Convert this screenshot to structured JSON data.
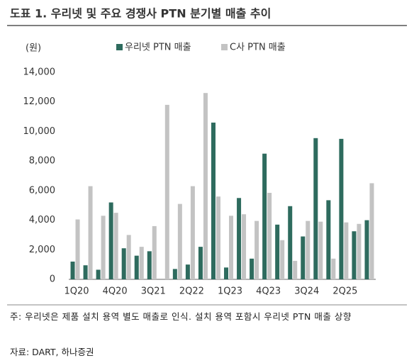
{
  "chart_data": {
    "type": "bar",
    "title": "도표 1. 우리넷 및 주요 경쟁사 PTN 분기별 매출 추이",
    "y_unit": "(원)",
    "categories": [
      "1Q20",
      null,
      null,
      "4Q20",
      null,
      null,
      "3Q21",
      null,
      null,
      "2Q22",
      null,
      null,
      "1Q23",
      null,
      null,
      "4Q23",
      null,
      null,
      "3Q24",
      null,
      null,
      "2Q25",
      null,
      null
    ],
    "series": [
      {
        "name": "우리넷 PTN 매출",
        "color": "#2e6b5e",
        "values": [
          1200,
          950,
          650,
          5200,
          2100,
          1600,
          1900,
          null,
          700,
          1000,
          2200,
          10600,
          800,
          5500,
          1400,
          8500,
          3700,
          4950,
          2900,
          9550,
          5350,
          9500,
          3250,
          4000
        ]
      },
      {
        "name": "C사 PTN 매출",
        "color": "#c3c3c3",
        "values": [
          4050,
          6300,
          4300,
          4500,
          3000,
          2200,
          3600,
          11800,
          5100,
          6300,
          12600,
          5600,
          4300,
          4400,
          3950,
          5850,
          2650,
          1250,
          3950,
          3900,
          1400,
          3850,
          3750,
          6500
        ]
      }
    ],
    "ylim": [
      0,
      14000
    ],
    "yticks": [
      0,
      {
        "value": 2000,
        "label": "2,000"
      },
      {
        "value": 4000,
        "label": "4,000"
      },
      {
        "value": 6000,
        "label": "6,000"
      },
      {
        "value": 8000,
        "label": "8,000"
      },
      {
        "value": 10000,
        "label": "10,000"
      },
      {
        "value": 12000,
        "label": "12,000"
      },
      {
        "value": 14000,
        "label": "14,000"
      }
    ],
    "grid": false,
    "note": "주: 우리넷은 제품 설치 용역 별도 매출로 인식. 설치 용역 포함시 우리넷 PTN 매출 상향",
    "source": "자료: DART, 하나증권"
  }
}
